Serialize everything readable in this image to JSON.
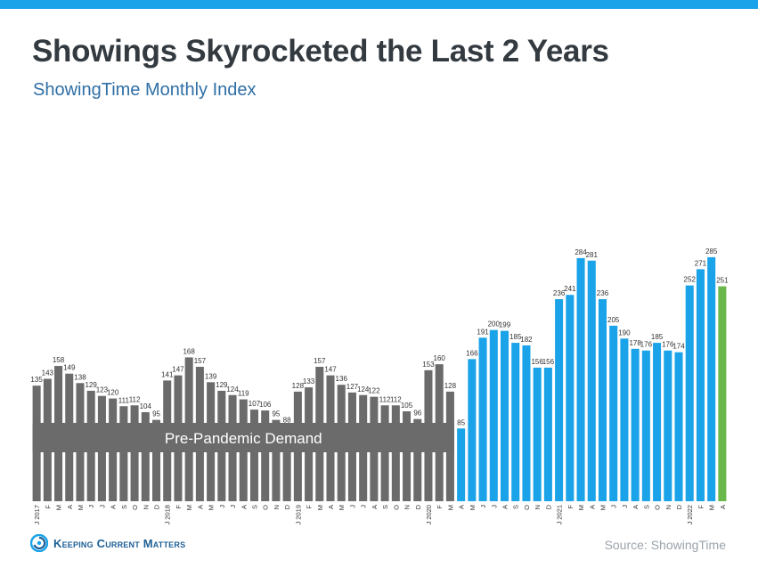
{
  "header": {
    "title": "Showings Skyrocketed the Last 2 Years",
    "subtitle": "ShowingTime Monthly Index"
  },
  "footer": {
    "brand": "Keeping Current Matters",
    "source": "Source: ShowingTime"
  },
  "colors": {
    "accent_bar": "#1aa3e8",
    "pre_pandemic": "#6b6b6b",
    "pandemic": "#1aa3e8",
    "latest": "#6ab84a",
    "band": "#6b6b6b"
  },
  "chart_data": {
    "type": "bar",
    "title": "",
    "xlabel": "",
    "ylabel": "",
    "ylim": [
      0,
      300
    ],
    "grid": false,
    "band_label": "Pre-Pandemic Demand",
    "categories": [
      "J 2017",
      "F",
      "M",
      "A",
      "M",
      "J",
      "J",
      "A",
      "S",
      "O",
      "N",
      "D",
      "J 2018",
      "F",
      "M",
      "A",
      "M",
      "J",
      "J",
      "A",
      "S",
      "O",
      "N",
      "D",
      "J 2019",
      "F",
      "M",
      "A",
      "M",
      "J",
      "J",
      "A",
      "S",
      "O",
      "N",
      "D",
      "J 2020",
      "F",
      "M",
      "A",
      "M",
      "J",
      "J",
      "A",
      "S",
      "O",
      "N",
      "D",
      "J 2021",
      "F",
      "M",
      "A",
      "M",
      "J",
      "J",
      "A",
      "S",
      "O",
      "N",
      "D",
      "J 2022",
      "F",
      "M",
      "A"
    ],
    "values": [
      135,
      143,
      158,
      149,
      138,
      129,
      123,
      120,
      111,
      112,
      104,
      95,
      141,
      147,
      168,
      157,
      139,
      129,
      124,
      119,
      107,
      106,
      95,
      88,
      128,
      133,
      157,
      147,
      136,
      127,
      124,
      122,
      112,
      112,
      105,
      96,
      153,
      160,
      128,
      85,
      166,
      191,
      200,
      199,
      185,
      182,
      156,
      156,
      236,
      241,
      284,
      281,
      236,
      205,
      190,
      178,
      176,
      185,
      176,
      174,
      252,
      271,
      285,
      251
    ],
    "series_groups": [
      {
        "group": "pre-pandemic",
        "from": 0,
        "to": 38
      },
      {
        "group": "pandemic",
        "from": 39,
        "to": 62
      },
      {
        "group": "latest",
        "from": 63,
        "to": 63
      }
    ]
  }
}
